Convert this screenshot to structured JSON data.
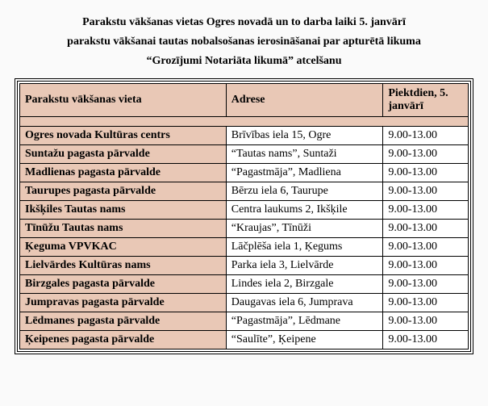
{
  "heading": {
    "line1": "Parakstu vākšanas vietas Ogres novadā un to darba laiki 5. janvārī",
    "line2": "parakstu vākšanai tautas nobalsošanas ierosināšanai par apturētā likuma",
    "line3": "“Grozījumi Notariāta likumā” atcelšanu"
  },
  "table": {
    "headers": {
      "location": "Parakstu vākšanas vieta",
      "address": "Adrese",
      "time": "Piektdien, 5. janvārī"
    },
    "rows": [
      {
        "location": "Ogres novada Kultūras centrs",
        "address": "Brīvības iela 15, Ogre",
        "time": "9.00-13.00"
      },
      {
        "location": "Suntažu pagasta pārvalde",
        "address": "“Tautas nams”, Suntaži",
        "time": "9.00-13.00"
      },
      {
        "location": "Madlienas pagasta pārvalde",
        "address": "“Pagastmāja”, Madliena",
        "time": "9.00-13.00"
      },
      {
        "location": "Taurupes pagasta pārvalde",
        "address": "Bērzu iela 6, Taurupe",
        "time": "9.00-13.00"
      },
      {
        "location": "Ikšķiles Tautas nams",
        "address": "Centra laukums 2, Ikšķile",
        "time": "9.00-13.00"
      },
      {
        "location": "Tīnūžu Tautas nams",
        "address": "“Kraujas”, Tīnūži",
        "time": "9.00-13.00"
      },
      {
        "location": "Ķeguma VPVKAC",
        "address": "Lāčplēša iela 1, Ķegums",
        "time": "9.00-13.00"
      },
      {
        "location": "Lielvārdes Kultūras nams",
        "address": "Parka iela 3, Lielvārde",
        "time": "9.00-13.00"
      },
      {
        "location": "Birzgales pagasta pārvalde",
        "address": "Lindes iela 2, Birzgale",
        "time": "9.00-13.00"
      },
      {
        "location": "Jumpravas pagasta pārvalde",
        "address": "Daugavas iela 6, Jumprava",
        "time": "9.00-13.00"
      },
      {
        "location": "Lēdmanes pagasta pārvalde",
        "address": "“Pagastmāja”, Lēdmane",
        "time": "9.00-13.00"
      },
      {
        "location": "Ķeipenes pagasta pārvalde",
        "address": "“Saulīte”, Ķeipene",
        "time": "9.00-13.00"
      }
    ]
  },
  "style": {
    "header_bg": "#e9c8b6",
    "loc_bg": "#e9c8b6",
    "body_bg": "#fafafa",
    "cell_bg": "#ffffff",
    "border_color": "#000000",
    "font_family": "Times New Roman",
    "heading_fontsize_pt": 11,
    "cell_fontsize_pt": 11
  }
}
